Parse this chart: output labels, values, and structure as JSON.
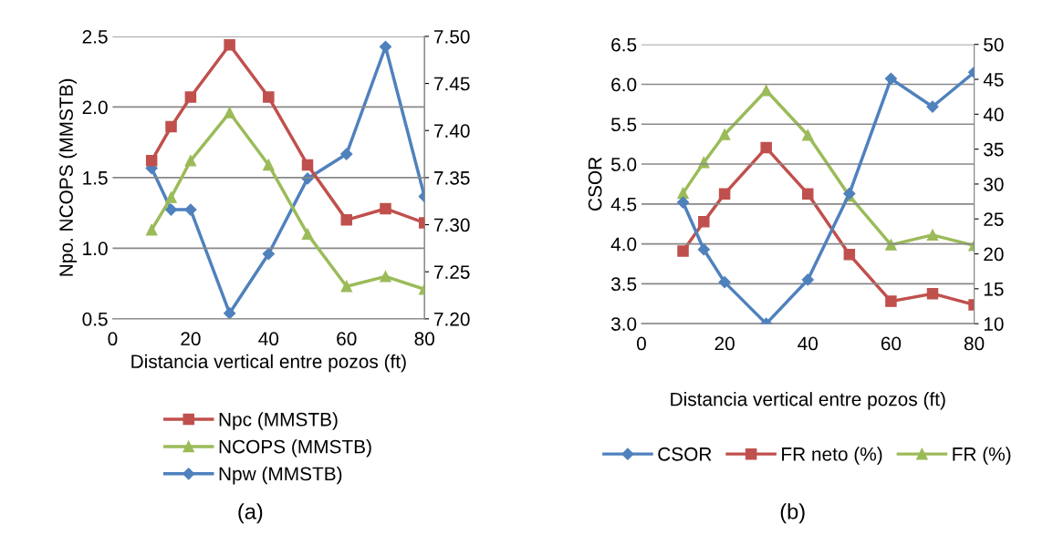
{
  "chart_data": [
    {
      "type": "line",
      "x": [
        10,
        15,
        20,
        30,
        40,
        50,
        60,
        70,
        80
      ],
      "xlabel": "Distancia vertical entre pozos (ft)",
      "ylabel": "Npo. NCOPS (MMSTB)",
      "xlim": [
        0,
        80
      ],
      "xticks": [
        0,
        20,
        40,
        60,
        80
      ],
      "ylim": [
        0.5,
        2.5
      ],
      "yticks": [
        {
          "value": 0.5,
          "label": "0.5"
        },
        {
          "value": 1.0,
          "label": "1.0"
        },
        {
          "value": 1.5,
          "label": "1.5"
        },
        {
          "value": 2.0,
          "label": "2.0"
        },
        {
          "value": 2.5,
          "label": "2.5"
        }
      ],
      "y2lim": [
        7.2,
        7.5
      ],
      "y2ticks": [
        {
          "value": 7.2,
          "label": "7.20"
        },
        {
          "value": 7.25,
          "label": "7.25"
        },
        {
          "value": 7.3,
          "label": "7.30"
        },
        {
          "value": 7.35,
          "label": "7.35"
        },
        {
          "value": 7.4,
          "label": "7.40"
        },
        {
          "value": 7.45,
          "label": "7.45"
        },
        {
          "value": 7.5,
          "label": "7.50"
        }
      ],
      "grid": "y",
      "legend": "bottom",
      "annotations": [
        "(a)"
      ],
      "series": [
        {
          "name": "Npc (MMSTB)",
          "color": "#c0504d",
          "marker": "square",
          "values": [
            1.62,
            1.86,
            2.07,
            2.44,
            2.07,
            1.59,
            1.2,
            1.28,
            1.18
          ]
        },
        {
          "name": "NCOPS (MMSTB)",
          "color": "#9bbb59",
          "marker": "triangle",
          "values": [
            1.13,
            1.36,
            1.62,
            1.96,
            1.59,
            1.1,
            0.73,
            0.8,
            0.71
          ]
        },
        {
          "name": "Npw (MMSTB)",
          "color": "#4f81bd",
          "marker": "diamond",
          "axis": "y2",
          "values": [
            7.36,
            7.316,
            7.316,
            7.206,
            7.269,
            7.349,
            7.375,
            7.489,
            7.33
          ]
        }
      ]
    },
    {
      "type": "line",
      "x": [
        10,
        15,
        20,
        30,
        40,
        50,
        60,
        70,
        80
      ],
      "xlabel": "Distancia vertical entre pozos (ft)",
      "ylabel": "CSOR",
      "xlim": [
        0,
        80
      ],
      "xticks": [
        0,
        20,
        40,
        60,
        80
      ],
      "ylim": [
        3.0,
        6.5
      ],
      "yticks": [
        {
          "value": 3.0,
          "label": "3.0"
        },
        {
          "value": 3.5,
          "label": "3.5"
        },
        {
          "value": 4.0,
          "label": "4.0"
        },
        {
          "value": 4.5,
          "label": "4.5"
        },
        {
          "value": 5.0,
          "label": "5.0"
        },
        {
          "value": 5.5,
          "label": "5.5"
        },
        {
          "value": 6.0,
          "label": "6.0"
        },
        {
          "value": 6.5,
          "label": "6.5"
        }
      ],
      "y2lim": [
        10,
        50
      ],
      "y2ticks": [
        10,
        15,
        20,
        25,
        30,
        35,
        40,
        45,
        50
      ],
      "grid": "y",
      "legend": "bottom",
      "annotations": [
        "(b)"
      ],
      "series": [
        {
          "name": "CSOR",
          "color": "#4f81bd",
          "marker": "diamond",
          "values": [
            4.52,
            3.93,
            3.52,
            3.0,
            3.55,
            4.63,
            6.07,
            5.72,
            6.15
          ]
        },
        {
          "name": "FR neto (%)",
          "color": "#c0504d",
          "marker": "square",
          "axis": "y2",
          "values": [
            20.4,
            24.6,
            28.6,
            35.2,
            28.6,
            19.9,
            13.2,
            14.3,
            12.7
          ]
        },
        {
          "name": "FR (%)",
          "color": "#9bbb59",
          "marker": "triangle",
          "axis": "y2",
          "values": [
            28.7,
            33.1,
            37.1,
            43.4,
            37.0,
            28.3,
            21.3,
            22.7,
            21.2
          ]
        }
      ]
    }
  ]
}
